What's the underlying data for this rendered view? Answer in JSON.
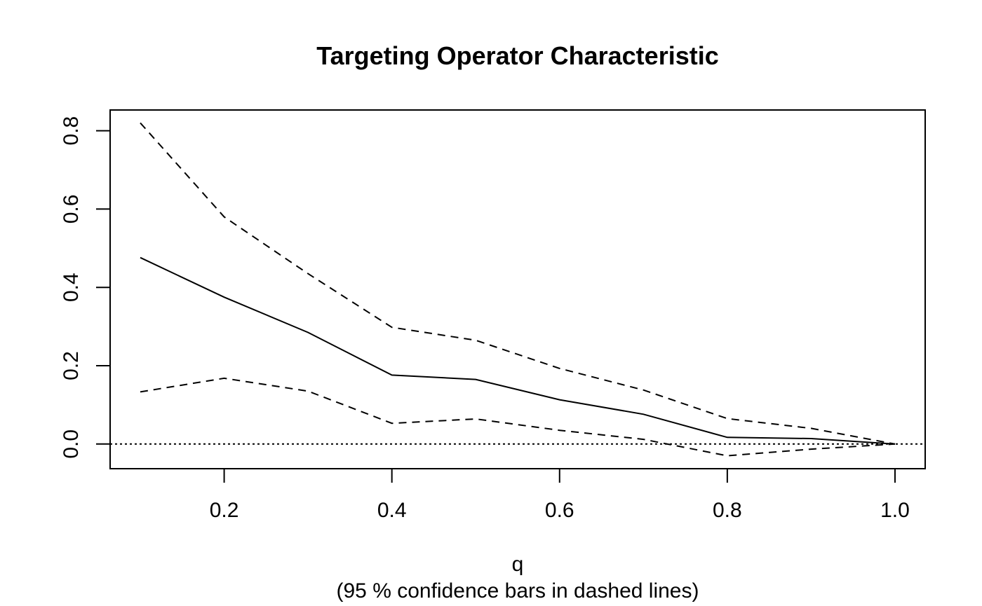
{
  "chart_data": {
    "type": "line",
    "title": "Targeting Operator Characteristic",
    "xlabel": "q",
    "xsublabel": "(95 % confidence bars in dashed lines)",
    "ylabel": "",
    "xlim": [
      0.064,
      1.036
    ],
    "ylim": [
      -0.063,
      0.853
    ],
    "xticks": [
      0.2,
      0.4,
      0.6,
      0.8,
      1.0
    ],
    "xtick_labels": [
      "0.2",
      "0.4",
      "0.6",
      "0.8",
      "1.0"
    ],
    "yticks": [
      0.0,
      0.2,
      0.4,
      0.6,
      0.8
    ],
    "ytick_labels": [
      "0.0",
      "0.2",
      "0.4",
      "0.6",
      "0.8"
    ],
    "x": [
      0.1,
      0.2,
      0.3,
      0.4,
      0.5,
      0.6,
      0.7,
      0.8,
      0.9,
      1.0
    ],
    "series": [
      {
        "role": "estimate",
        "style": "solid",
        "values": [
          0.476,
          0.375,
          0.285,
          0.176,
          0.165,
          0.113,
          0.076,
          0.017,
          0.014,
          0.0
        ]
      },
      {
        "role": "upper",
        "style": "dashed",
        "values": [
          0.82,
          0.58,
          0.435,
          0.298,
          0.265,
          0.193,
          0.138,
          0.065,
          0.04,
          0.0
        ]
      },
      {
        "role": "lower",
        "style": "dashed",
        "values": [
          0.133,
          0.168,
          0.135,
          0.053,
          0.064,
          0.035,
          0.012,
          -0.03,
          -0.013,
          0.0
        ]
      }
    ],
    "reference_line": {
      "y": 0.0,
      "style": "dotted"
    },
    "grid": false,
    "legend": "none"
  }
}
